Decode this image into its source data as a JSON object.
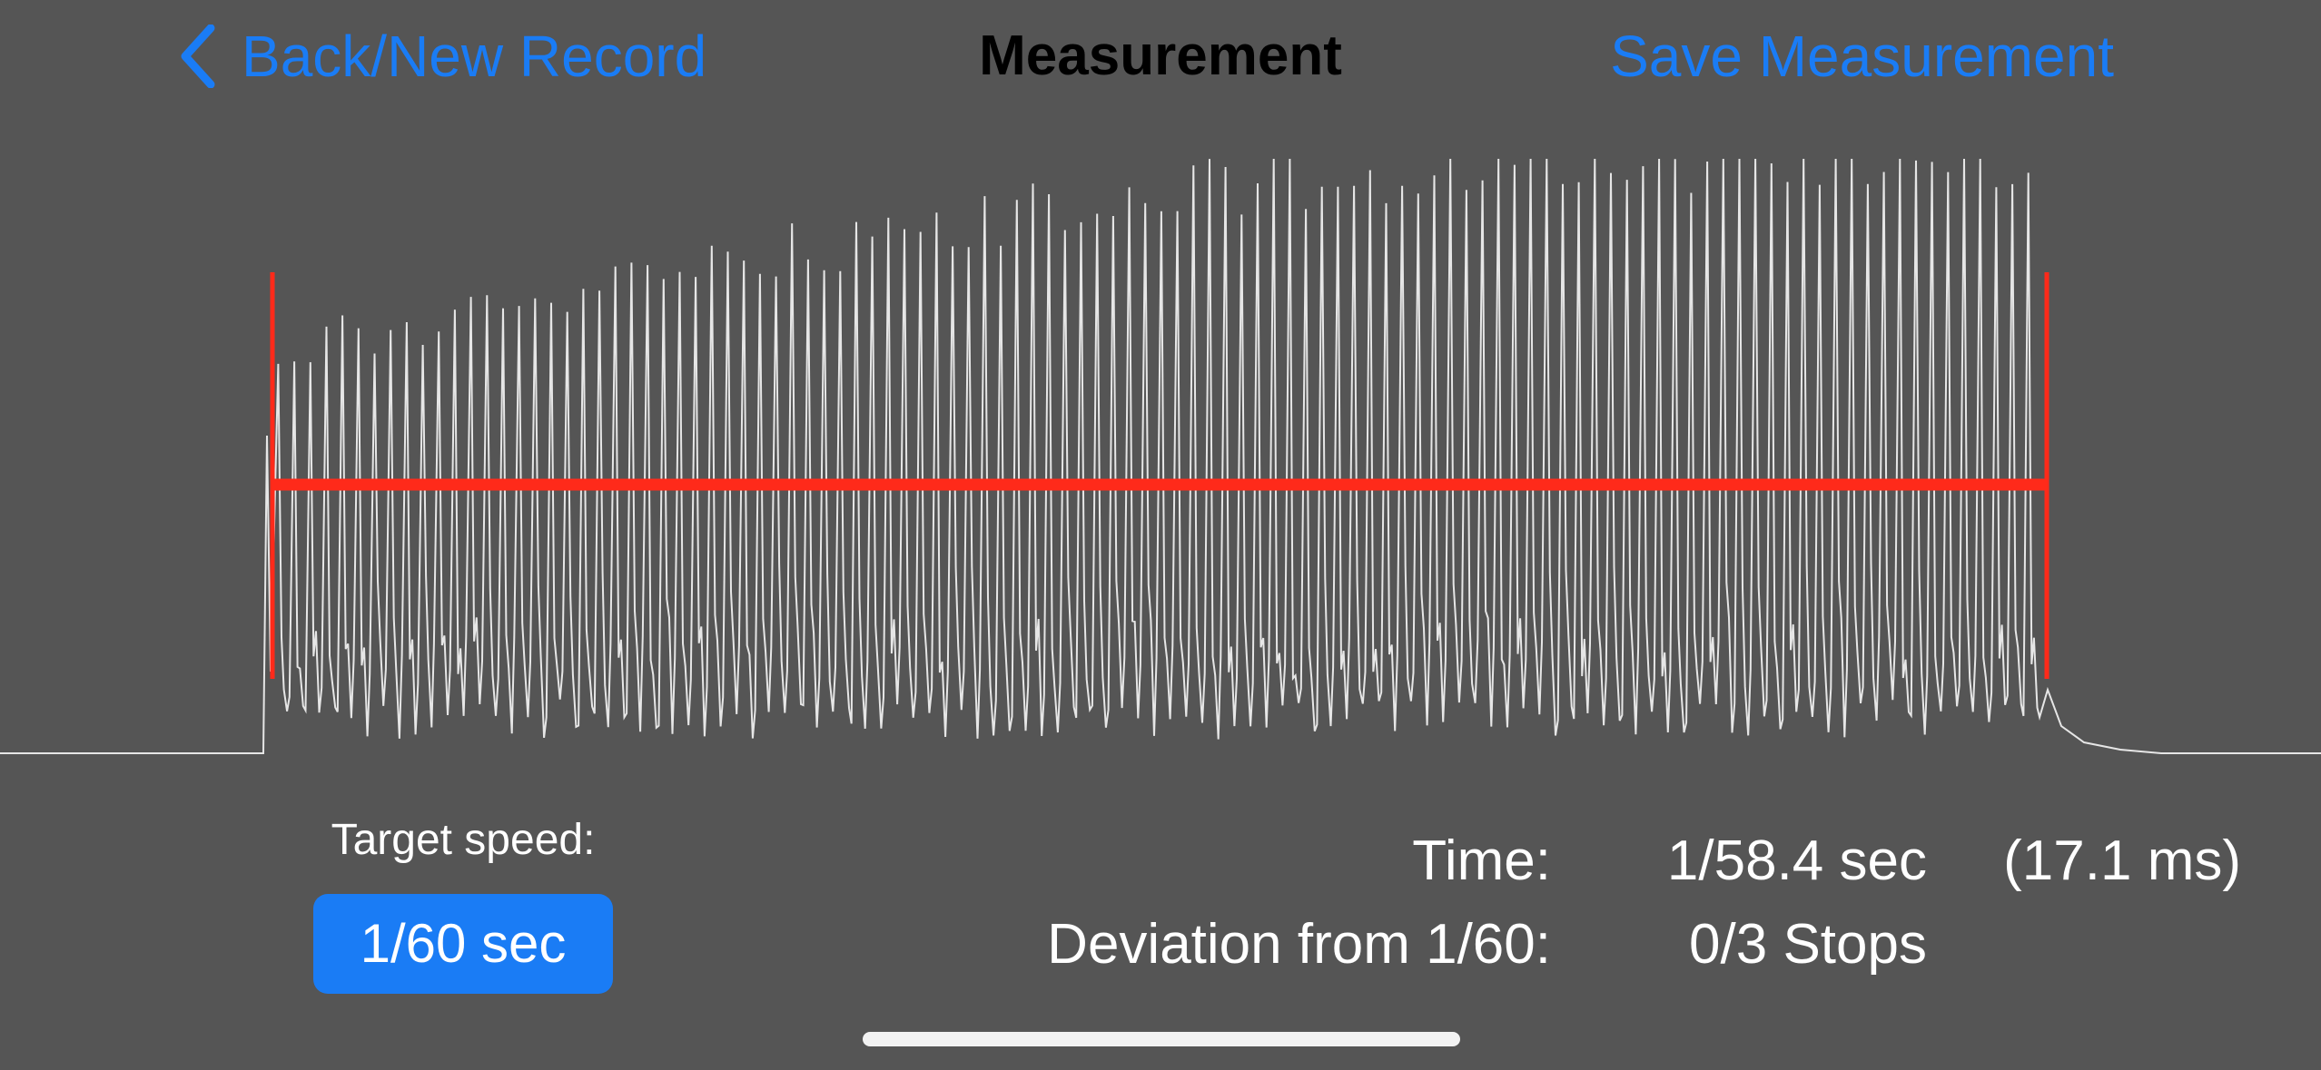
{
  "nav": {
    "back_label": "Back/New Record",
    "title": "Measurement",
    "save_label": "Save Measurement"
  },
  "target": {
    "label": "Target speed:",
    "button_label": "1/60 sec"
  },
  "stats": {
    "time_label": "Time:",
    "time_value": "1/58.4 sec",
    "time_ms": "(17.1 ms)",
    "deviation_label": "Deviation from 1/60:",
    "deviation_value": "0/3 Stops"
  },
  "colors": {
    "background": "#555555",
    "accent": "#1a7cf5",
    "marker": "#ff2a1a",
    "signal": "#e6e6e6"
  },
  "icons": {
    "back": "chevron-left-icon"
  }
}
